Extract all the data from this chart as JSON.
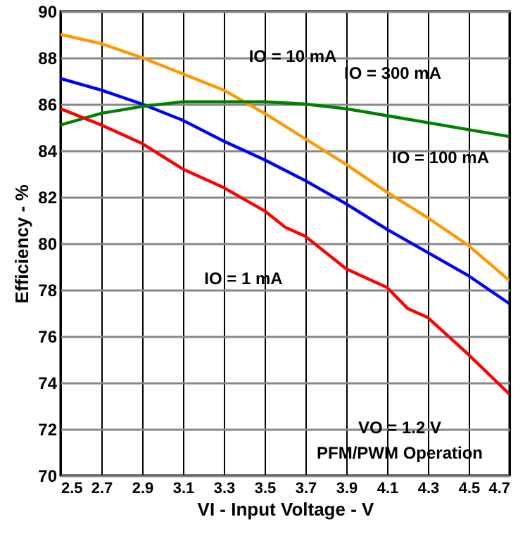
{
  "chart_data": {
    "type": "line",
    "xlabel": "VI - Input Voltage - V",
    "ylabel": "Efficiency - %",
    "xlim": [
      2.5,
      4.7
    ],
    "xticks": [
      2.5,
      2.7,
      2.9,
      3.1,
      3.3,
      3.5,
      3.7,
      3.9,
      4.1,
      4.3,
      4.5,
      4.7
    ],
    "ylim": [
      70,
      90
    ],
    "yticks": [
      70,
      72,
      74,
      76,
      78,
      80,
      82,
      84,
      86,
      88,
      90
    ],
    "grid": true,
    "marker": "none",
    "line_style": "solid",
    "series": [
      {
        "color": "#ff9900",
        "x": [
          2.5,
          2.7,
          2.9,
          3.1,
          3.3,
          3.5,
          3.7,
          3.9,
          4.1,
          4.3,
          4.5,
          4.7
        ],
        "values": [
          89.0,
          88.6,
          88.0,
          87.3,
          86.6,
          85.6,
          84.5,
          83.4,
          82.2,
          81.1,
          79.9,
          78.4
        ]
      },
      {
        "color": "#0000ff",
        "x": [
          2.5,
          2.7,
          2.9,
          3.1,
          3.3,
          3.5,
          3.7,
          3.9,
          4.1,
          4.3,
          4.5,
          4.7
        ],
        "values": [
          87.1,
          86.6,
          86.0,
          85.3,
          84.4,
          83.6,
          82.7,
          81.7,
          80.6,
          79.6,
          78.6,
          77.4
        ]
      },
      {
        "color": "#008000",
        "x": [
          2.5,
          2.7,
          2.9,
          3.1,
          3.3,
          3.5,
          3.7,
          3.9,
          4.1,
          4.3,
          4.5,
          4.7
        ],
        "values": [
          85.1,
          85.6,
          85.9,
          86.1,
          86.1,
          86.1,
          86.0,
          85.8,
          85.5,
          85.2,
          84.9,
          84.6
        ]
      },
      {
        "color": "#ff0000",
        "x": [
          2.5,
          2.7,
          2.9,
          3.1,
          3.3,
          3.5,
          3.6,
          3.7,
          3.9,
          4.1,
          4.2,
          4.3,
          4.5,
          4.7
        ],
        "values": [
          85.8,
          85.1,
          84.3,
          83.2,
          82.4,
          81.4,
          80.7,
          80.3,
          78.9,
          78.1,
          77.2,
          76.8,
          75.2,
          73.5
        ]
      }
    ],
    "annotations": [
      "IO = 10 mA",
      "IO = 300 mA",
      "IO = 100 mA",
      "IO = 1 mA",
      "VO = 1.2 V",
      "PFM/PWM Operation"
    ]
  }
}
